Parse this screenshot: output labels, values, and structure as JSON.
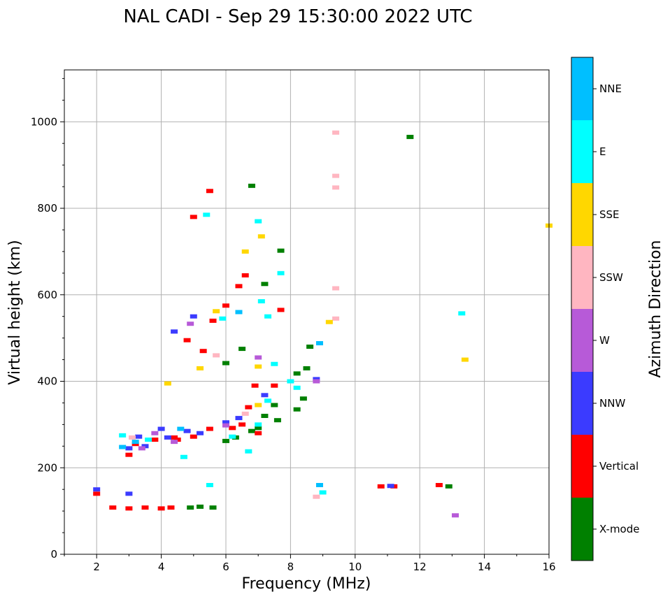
{
  "chart_data": {
    "type": "scatter",
    "title": "NAL CADI - Sep 29 15:30:00 2022 UTC",
    "xlabel": "Frequency (MHz)",
    "ylabel": "Virtual height (km)",
    "xlim": [
      1,
      16
    ],
    "ylim": [
      0,
      1120
    ],
    "x_ticks": [
      "2",
      "4",
      "6",
      "8",
      "10",
      "12",
      "14",
      "16"
    ],
    "y_ticks": [
      "0",
      "200",
      "400",
      "600",
      "800",
      "1000"
    ],
    "grid": true,
    "colorbar": {
      "label": "Azimuth Direction",
      "categories": [
        "X-mode",
        "Vertical",
        "NNW",
        "W",
        "SSW",
        "SSE",
        "E",
        "NNE"
      ],
      "colors": [
        "#008000",
        "#ff0000",
        "#3b3bff",
        "#b75ad8",
        "#ffb6c1",
        "#ffd700",
        "#00ffff",
        "#00bfff"
      ]
    },
    "series": [
      {
        "name": "X-mode",
        "points": [
          [
            4.9,
            108
          ],
          [
            5.2,
            110
          ],
          [
            5.6,
            108
          ],
          [
            6.0,
            262
          ],
          [
            6.3,
            270
          ],
          [
            6.8,
            285
          ],
          [
            7.0,
            292
          ],
          [
            7.2,
            320
          ],
          [
            7.6,
            310
          ],
          [
            7.5,
            345
          ],
          [
            8.2,
            335
          ],
          [
            8.4,
            360
          ],
          [
            8.2,
            418
          ],
          [
            8.5,
            430
          ],
          [
            8.6,
            480
          ],
          [
            6.5,
            475
          ],
          [
            6.0,
            442
          ],
          [
            6.8,
            852
          ],
          [
            11.7,
            965
          ],
          [
            12.9,
            157
          ],
          [
            7.7,
            702
          ],
          [
            7.2,
            625
          ]
        ]
      },
      {
        "name": "Vertical",
        "points": [
          [
            2.0,
            140
          ],
          [
            2.5,
            108
          ],
          [
            3.0,
            106
          ],
          [
            3.5,
            108
          ],
          [
            4.0,
            106
          ],
          [
            4.3,
            108
          ],
          [
            3.0,
            230
          ],
          [
            3.2,
            255
          ],
          [
            3.8,
            265
          ],
          [
            4.4,
            270
          ],
          [
            5.0,
            272
          ],
          [
            5.5,
            290
          ],
          [
            6.2,
            292
          ],
          [
            6.5,
            300
          ],
          [
            6.7,
            340
          ],
          [
            6.9,
            390
          ],
          [
            7.5,
            390
          ],
          [
            5.3,
            470
          ],
          [
            4.8,
            495
          ],
          [
            5.6,
            540
          ],
          [
            6.0,
            575
          ],
          [
            6.6,
            645
          ],
          [
            7.7,
            565
          ],
          [
            5.5,
            840
          ],
          [
            5.0,
            780
          ],
          [
            10.8,
            157
          ],
          [
            11.2,
            157
          ],
          [
            12.6,
            160
          ],
          [
            4.5,
            265
          ],
          [
            7.0,
            280
          ],
          [
            6.4,
            620
          ]
        ]
      },
      {
        "name": "NNW",
        "points": [
          [
            3.0,
            245
          ],
          [
            3.5,
            250
          ],
          [
            4.2,
            270
          ],
          [
            4.8,
            285
          ],
          [
            5.2,
            280
          ],
          [
            6.0,
            305
          ],
          [
            6.4,
            315
          ],
          [
            7.2,
            368
          ],
          [
            4.0,
            290
          ],
          [
            5.0,
            550
          ],
          [
            4.4,
            515
          ],
          [
            11.1,
            158
          ],
          [
            3.0,
            140
          ],
          [
            8.8,
            405
          ],
          [
            2.0,
            150
          ],
          [
            3.3,
            272
          ]
        ]
      },
      {
        "name": "W",
        "points": [
          [
            3.8,
            280
          ],
          [
            4.4,
            260
          ],
          [
            6.0,
            298
          ],
          [
            8.8,
            400
          ],
          [
            13.1,
            90
          ],
          [
            4.9,
            533
          ],
          [
            7.0,
            455
          ],
          [
            3.4,
            245
          ]
        ]
      },
      {
        "name": "SSW",
        "points": [
          [
            9.4,
            975
          ],
          [
            9.4,
            875
          ],
          [
            9.4,
            848
          ],
          [
            9.4,
            615
          ],
          [
            9.4,
            545
          ],
          [
            8.8,
            133
          ],
          [
            6.6,
            325
          ],
          [
            5.7,
            460
          ],
          [
            3.1,
            270
          ]
        ]
      },
      {
        "name": "SSE",
        "points": [
          [
            13.4,
            450
          ],
          [
            9.2,
            537
          ],
          [
            16.0,
            760
          ],
          [
            6.6,
            700
          ],
          [
            7.1,
            735
          ],
          [
            6.4,
            560
          ],
          [
            7.0,
            434
          ],
          [
            5.2,
            430
          ],
          [
            4.2,
            395
          ],
          [
            7.0,
            345
          ],
          [
            5.7,
            562
          ]
        ]
      },
      {
        "name": "E",
        "points": [
          [
            13.3,
            557
          ],
          [
            9.0,
            143
          ],
          [
            2.8,
            275
          ],
          [
            6.2,
            272
          ],
          [
            7.0,
            300
          ],
          [
            7.3,
            355
          ],
          [
            7.5,
            440
          ],
          [
            8.0,
            400
          ],
          [
            8.2,
            385
          ],
          [
            7.1,
            585
          ],
          [
            7.3,
            550
          ],
          [
            5.9,
            545
          ],
          [
            5.5,
            160
          ],
          [
            6.7,
            238
          ],
          [
            7.0,
            770
          ],
          [
            5.4,
            785
          ],
          [
            7.7,
            650
          ],
          [
            3.6,
            265
          ],
          [
            4.7,
            225
          ]
        ]
      },
      {
        "name": "NNE",
        "points": [
          [
            8.9,
            160
          ],
          [
            8.9,
            488
          ],
          [
            6.4,
            560
          ],
          [
            4.6,
            290
          ],
          [
            3.2,
            260
          ],
          [
            2.8,
            248
          ]
        ]
      }
    ]
  }
}
